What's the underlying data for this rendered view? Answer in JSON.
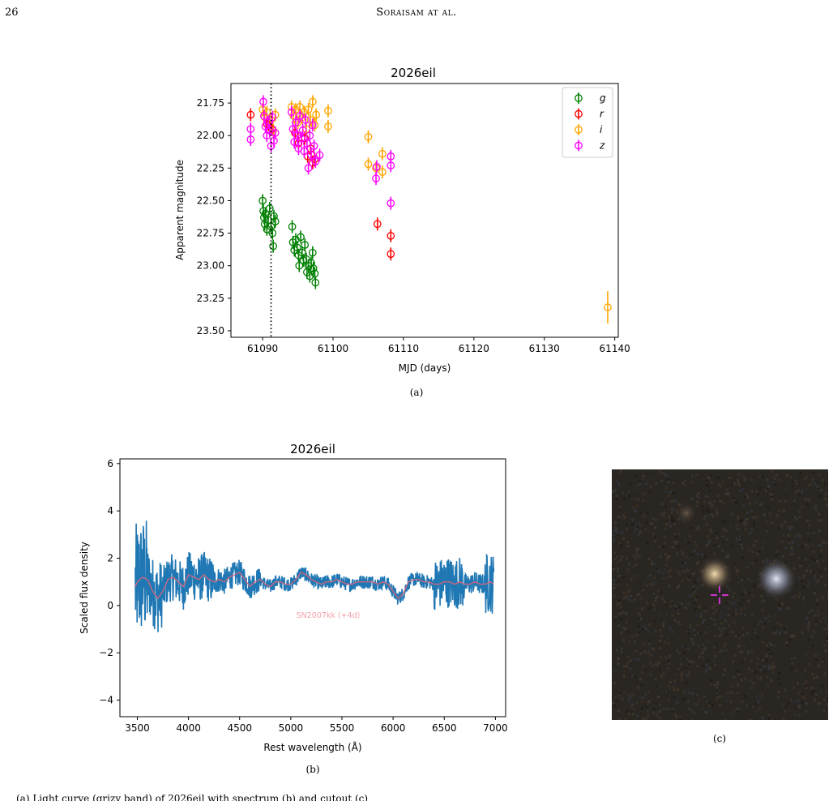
{
  "header": {
    "page_number": "26",
    "running_head": "Soraisam at al."
  },
  "figure_a": {
    "caption": "(a)",
    "chart_data": {
      "type": "scatter",
      "title": "2026eil",
      "xlabel": "MJD (days)",
      "ylabel": "Apparent magnitude",
      "xlim": [
        61085.5,
        61140.5
      ],
      "ylim": [
        23.55,
        21.6
      ],
      "y_inverted": true,
      "xticks": [
        61090,
        61100,
        61110,
        61120,
        61130,
        61140
      ],
      "yticks": [
        21.75,
        22.0,
        22.25,
        22.5,
        22.75,
        23.0,
        23.25,
        23.5
      ],
      "vline_x": 61091.2,
      "legend": {
        "placement": "top-right",
        "entries": [
          "g",
          "r",
          "i",
          "z"
        ]
      },
      "colors": {
        "g": "#008000",
        "r": "#ff0000",
        "i": "#ffa500",
        "z": "#ff00ff"
      },
      "series": [
        {
          "name": "g",
          "points": [
            [
              61090.0,
              22.5
            ],
            [
              61090.1,
              22.58
            ],
            [
              61090.2,
              22.63
            ],
            [
              61090.3,
              22.68
            ],
            [
              61090.4,
              22.6
            ],
            [
              61090.6,
              22.72
            ],
            [
              61090.8,
              22.65
            ],
            [
              61091.0,
              22.56
            ],
            [
              61091.2,
              22.7
            ],
            [
              61091.4,
              22.75
            ],
            [
              61091.6,
              22.62
            ],
            [
              61091.8,
              22.66
            ],
            [
              61091.5,
              22.85
            ],
            [
              61094.2,
              22.7
            ],
            [
              61094.3,
              22.82
            ],
            [
              61094.5,
              22.88
            ],
            [
              61094.7,
              22.8
            ],
            [
              61094.9,
              22.86
            ],
            [
              61095.1,
              22.92
            ],
            [
              61095.2,
              23.0
            ],
            [
              61095.4,
              22.78
            ],
            [
              61095.6,
              22.9
            ],
            [
              61095.8,
              22.96
            ],
            [
              61096.0,
              22.84
            ],
            [
              61096.2,
              22.95
            ],
            [
              61096.3,
              23.05
            ],
            [
              61096.5,
              23.0
            ],
            [
              61096.7,
              23.08
            ],
            [
              61096.9,
              22.98
            ],
            [
              61097.1,
              22.9
            ],
            [
              61097.2,
              23.02
            ],
            [
              61097.4,
              23.06
            ],
            [
              61097.5,
              23.13
            ]
          ]
        },
        {
          "name": "r",
          "points": [
            [
              61088.3,
              21.84
            ],
            [
              61090.6,
              21.91
            ],
            [
              61091.3,
              21.95
            ],
            [
              61094.6,
              21.98
            ],
            [
              61095.1,
              22.06
            ],
            [
              61096.0,
              22.02
            ],
            [
              61096.4,
              22.16
            ],
            [
              61096.8,
              22.1
            ],
            [
              61097.1,
              22.21
            ],
            [
              61097.4,
              22.18
            ],
            [
              61106.3,
              22.68
            ],
            [
              61108.2,
              22.77
            ],
            [
              61108.2,
              22.91
            ]
          ]
        },
        {
          "name": "i",
          "points": [
            [
              61090.0,
              21.8
            ],
            [
              61090.3,
              21.86
            ],
            [
              61090.6,
              21.82
            ],
            [
              61090.9,
              21.92
            ],
            [
              61091.2,
              21.88
            ],
            [
              61091.5,
              21.96
            ],
            [
              61091.8,
              21.84
            ],
            [
              61094.1,
              21.78
            ],
            [
              61094.4,
              21.85
            ],
            [
              61094.7,
              21.8
            ],
            [
              61095.0,
              21.9
            ],
            [
              61095.3,
              21.78
            ],
            [
              61095.6,
              21.86
            ],
            [
              61095.9,
              21.82
            ],
            [
              61096.2,
              21.95
            ],
            [
              61096.5,
              21.8
            ],
            [
              61096.8,
              21.88
            ],
            [
              61097.1,
              21.74
            ],
            [
              61097.4,
              21.92
            ],
            [
              61097.6,
              21.84
            ],
            [
              61099.3,
              21.81
            ],
            [
              61099.3,
              21.93
            ],
            [
              61105.0,
              22.01
            ],
            [
              61105.0,
              22.22
            ],
            [
              61107.0,
              22.14
            ],
            [
              61107.0,
              22.28
            ],
            [
              61106.1,
              22.25
            ]
          ]
        },
        {
          "name": "z",
          "points": [
            [
              61088.3,
              21.95
            ],
            [
              61088.3,
              22.03
            ],
            [
              61090.1,
              21.74
            ],
            [
              61090.2,
              21.85
            ],
            [
              61090.4,
              21.93
            ],
            [
              61090.6,
              22.0
            ],
            [
              61090.8,
              21.9
            ],
            [
              61091.0,
              21.96
            ],
            [
              61091.2,
              22.08
            ],
            [
              61091.4,
              21.86
            ],
            [
              61091.6,
              22.04
            ],
            [
              61091.8,
              21.98
            ],
            [
              61094.1,
              21.82
            ],
            [
              61094.3,
              21.95
            ],
            [
              61094.5,
              22.05
            ],
            [
              61094.7,
              21.9
            ],
            [
              61094.9,
              22.0
            ],
            [
              61095.1,
              22.1
            ],
            [
              61095.3,
              21.85
            ],
            [
              61095.5,
              22.02
            ],
            [
              61095.7,
              21.96
            ],
            [
              61095.9,
              22.12
            ],
            [
              61096.1,
              21.88
            ],
            [
              61096.3,
              22.06
            ],
            [
              61096.5,
              22.25
            ],
            [
              61096.7,
              22.0
            ],
            [
              61096.9,
              22.15
            ],
            [
              61097.1,
              21.92
            ],
            [
              61097.3,
              22.08
            ],
            [
              61097.5,
              22.2
            ],
            [
              61098.1,
              22.15
            ],
            [
              61106.1,
              22.33
            ],
            [
              61106.2,
              22.24
            ],
            [
              61108.2,
              22.16
            ],
            [
              61108.2,
              22.23
            ],
            [
              61108.2,
              22.52
            ]
          ]
        }
      ],
      "outlier": {
        "name": "i",
        "point": [
          61139.0,
          23.32
        ]
      }
    }
  },
  "figure_b": {
    "caption": "(b)",
    "chart_data": {
      "type": "line",
      "title": "2026eil",
      "xlabel": "Rest wavelength (Å)",
      "ylabel": "Scaled flux density",
      "xlim": [
        3330,
        7100
      ],
      "ylim": [
        -4.7,
        6.2
      ],
      "xticks": [
        3500,
        4000,
        4500,
        5000,
        5500,
        6000,
        6500,
        7000
      ],
      "yticks": [
        -4,
        -2,
        0,
        2,
        4,
        6
      ],
      "annotation": "SN2007kk (+4d)",
      "colors": {
        "observed": "#1f77b4",
        "template": "#d9667a",
        "annotation": "#f4a0a8"
      },
      "series": [
        {
          "x": [
            3480,
            3500,
            3550,
            3600,
            3650,
            3700,
            3750,
            3800,
            3850,
            3900,
            3950,
            4000,
            4050,
            4100,
            4150,
            4200,
            4250,
            4300,
            4350,
            4400,
            4450,
            4500,
            4550,
            4600,
            4650,
            4700,
            4750,
            4800,
            4850,
            4900,
            4950,
            5000,
            5050,
            5100,
            5150,
            5200,
            5250,
            5300,
            5350,
            5400,
            5450,
            5500,
            5550,
            5600,
            5650,
            5700,
            5750,
            5800,
            5850,
            5900,
            5950,
            6000,
            6050,
            6100,
            6150,
            6200,
            6250,
            6300,
            6350,
            6400,
            6450,
            6500,
            6550,
            6600,
            6650,
            6700,
            6750,
            6800,
            6850,
            6900,
            6950,
            6980
          ],
          "y": [
            0.8,
            1.0,
            1.2,
            1.1,
            0.6,
            0.3,
            0.6,
            1.1,
            1.2,
            1.0,
            0.8,
            1.3,
            1.2,
            1.1,
            1.3,
            1.1,
            1.0,
            1.1,
            1.0,
            1.2,
            1.3,
            1.4,
            1.1,
            0.8,
            1.0,
            1.1,
            0.9,
            0.8,
            1.0,
            1.0,
            0.9,
            0.9,
            1.1,
            1.4,
            1.3,
            1.1,
            1.0,
            0.9,
            1.0,
            1.0,
            1.1,
            1.0,
            0.9,
            0.9,
            1.0,
            1.0,
            1.0,
            1.0,
            0.9,
            1.0,
            0.9,
            0.6,
            0.3,
            0.5,
            1.0,
            1.1,
            1.1,
            1.0,
            1.0,
            0.9,
            0.9,
            1.0,
            1.0,
            0.9,
            1.0,
            0.9,
            0.9,
            1.0,
            0.9,
            0.9,
            1.0,
            0.9
          ]
        }
      ]
    }
  },
  "figure_c": {
    "caption": "(c)",
    "colors": {
      "background": "#2a2622",
      "crosshair": "#cc33cc",
      "host": "#d9c39a",
      "neighbor": "#c9cfe0"
    }
  },
  "body_text_fragment": "(a) Light curve (grizy band) of 2026eil with spectrum (b) and cutout (c)"
}
